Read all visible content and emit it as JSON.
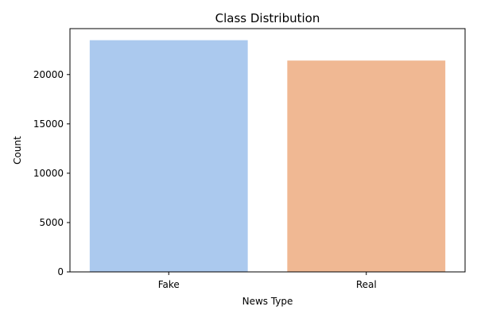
{
  "chart_data": {
    "type": "bar",
    "title": "Class Distribution",
    "xlabel": "News Type",
    "ylabel": "Count",
    "categories": [
      "Fake",
      "Real"
    ],
    "values": [
      23481,
      21417
    ],
    "colors": [
      "#abc9ee",
      "#f0b893"
    ],
    "ylim": [
      0,
      24655
    ],
    "yticks": [
      0,
      5000,
      10000,
      15000,
      20000
    ],
    "ytick_labels": [
      "0",
      "5000",
      "10000",
      "15000",
      "20000"
    ],
    "grid": false,
    "legend": false
  }
}
